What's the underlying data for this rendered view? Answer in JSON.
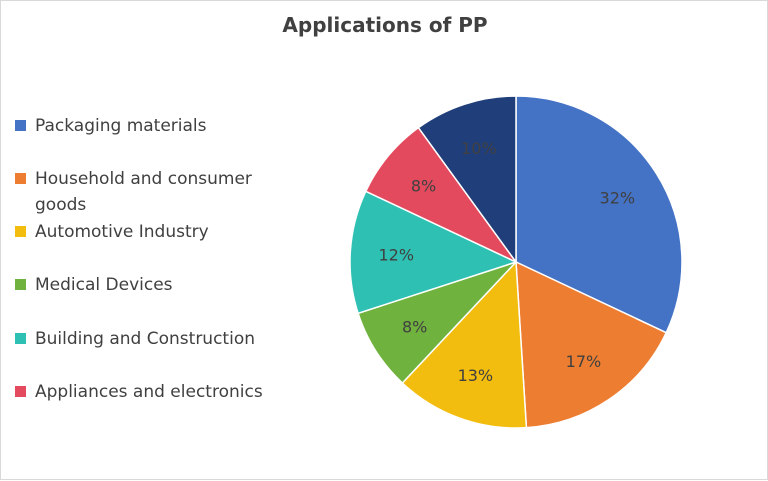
{
  "chart_data": {
    "type": "pie",
    "title": "Applications of PP",
    "legend_position": "left",
    "slices": [
      {
        "label": "Packaging materials",
        "value": 32,
        "value_label": "32%",
        "color": "#4472C4"
      },
      {
        "label": "Household and consumer goods",
        "value": 17,
        "value_label": "17%",
        "color": "#ED7D31"
      },
      {
        "label": "Automotive Industry",
        "value": 13,
        "value_label": "13%",
        "color": "#F2BD0E"
      },
      {
        "label": "Medical Devices",
        "value": 8,
        "value_label": "8%",
        "color": "#70B23E"
      },
      {
        "label": "Building and Construction",
        "value": 12,
        "value_label": "12%",
        "color": "#2EC1B3"
      },
      {
        "label": "Appliances and electronics",
        "value": 8,
        "value_label": "8%",
        "color": "#E34A5E"
      },
      {
        "label": "",
        "value": 10,
        "value_label": "10%",
        "color": "#203F7A"
      }
    ]
  }
}
